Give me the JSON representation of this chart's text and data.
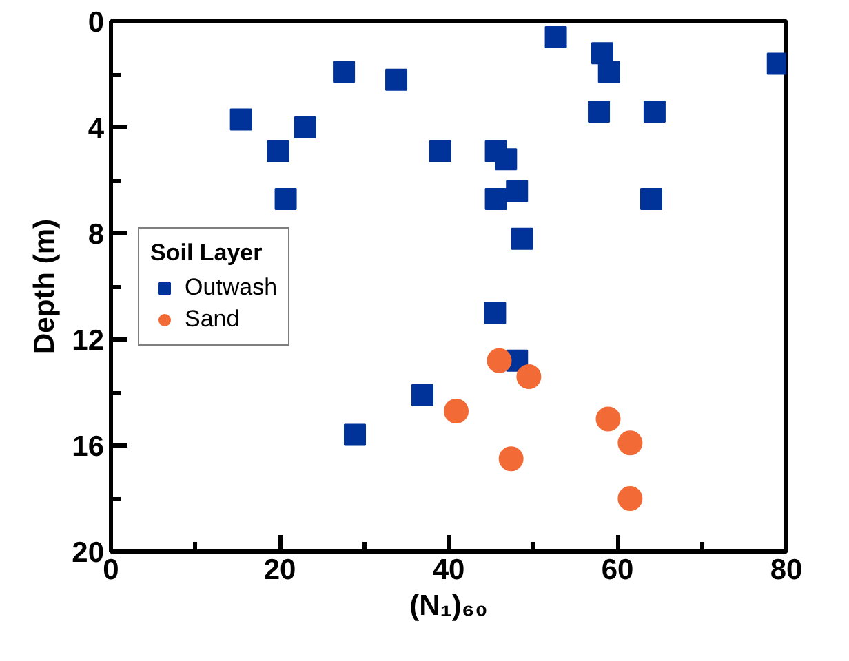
{
  "chart_data": {
    "type": "scatter",
    "xlabel": "(N₁)₆₀",
    "ylabel": "Depth (m)",
    "legend_title": "Soil Layer",
    "xlim": [
      0,
      80
    ],
    "xticks": [
      0,
      20,
      40,
      60,
      80
    ],
    "ylim": [
      20,
      0
    ],
    "yticks": [
      0,
      4,
      8,
      12,
      16,
      20
    ],
    "grid": false,
    "legend": "left",
    "series": [
      {
        "name": "Outwash",
        "color": "#003399",
        "marker": "square",
        "x": [
          52.7,
          58.2,
          59.0,
          79.0,
          27.6,
          33.8,
          15.4,
          23.0,
          19.8,
          39.0,
          45.6,
          46.8,
          57.8,
          64.4,
          20.7,
          45.6,
          48.1,
          64.0,
          48.7,
          45.5,
          48.1,
          36.9,
          28.9
        ],
        "values": [
          0.6,
          1.2,
          1.9,
          1.6,
          1.9,
          2.2,
          3.7,
          4.0,
          4.9,
          4.9,
          4.9,
          5.2,
          3.4,
          3.4,
          6.7,
          6.7,
          6.4,
          6.7,
          8.2,
          11.0,
          12.8,
          14.1,
          15.6
        ]
      },
      {
        "name": "Sand",
        "color": "#f26a36",
        "marker": "circle",
        "x": [
          46.0,
          49.5,
          40.9,
          58.9,
          61.5,
          47.4,
          61.5
        ],
        "values": [
          12.8,
          13.4,
          14.7,
          15.0,
          15.9,
          16.5,
          18.0
        ]
      }
    ]
  }
}
